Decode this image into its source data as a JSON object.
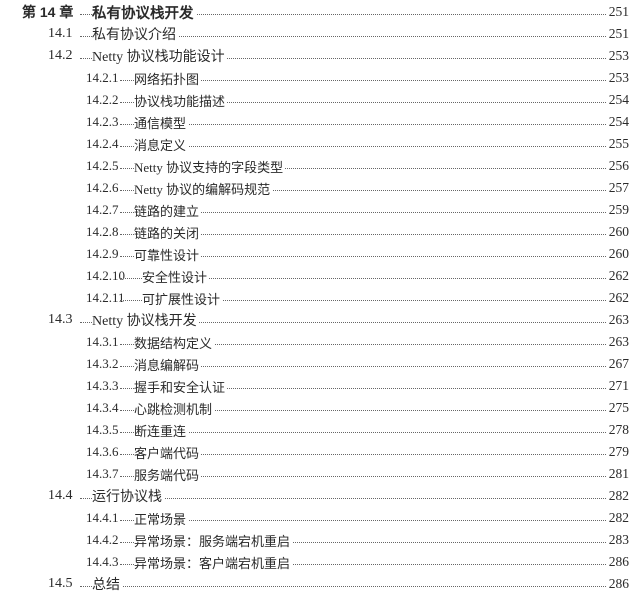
{
  "entries": [
    {
      "level": "chapter",
      "number": "第 14 章",
      "title": "私有协议栈开发",
      "page": "251"
    },
    {
      "level": "section",
      "number": "14.1",
      "title": "私有协议介绍",
      "page": "251"
    },
    {
      "level": "section",
      "number": "14.2",
      "title": "Netty 协议栈功能设计",
      "page": "253"
    },
    {
      "level": "sub",
      "number": "14.2.1",
      "title": "网络拓扑图",
      "page": "253"
    },
    {
      "level": "sub",
      "number": "14.2.2",
      "title": "协议栈功能描述",
      "page": "254"
    },
    {
      "level": "sub",
      "number": "14.2.3",
      "title": "通信模型",
      "page": "254"
    },
    {
      "level": "sub",
      "number": "14.2.4",
      "title": "消息定义",
      "page": "255"
    },
    {
      "level": "sub",
      "number": "14.2.5",
      "title": "Netty 协议支持的字段类型",
      "page": "256"
    },
    {
      "level": "sub",
      "number": "14.2.6",
      "title": "Netty 协议的编解码规范",
      "page": "257"
    },
    {
      "level": "sub",
      "number": "14.2.7",
      "title": "链路的建立",
      "page": "259"
    },
    {
      "level": "sub",
      "number": "14.2.8",
      "title": "链路的关闭",
      "page": "260"
    },
    {
      "level": "sub",
      "number": "14.2.9",
      "title": "可靠性设计",
      "page": "260"
    },
    {
      "level": "sub",
      "number": "14.2.10",
      "title": "安全性设计",
      "page": "262"
    },
    {
      "level": "sub",
      "number": "14.2.11",
      "title": "可扩展性设计",
      "page": "262"
    },
    {
      "level": "section",
      "number": "14.3",
      "title": "Netty 协议栈开发",
      "page": "263"
    },
    {
      "level": "sub",
      "number": "14.3.1",
      "title": "数据结构定义",
      "page": "263"
    },
    {
      "level": "sub",
      "number": "14.3.2",
      "title": "消息编解码",
      "page": "267"
    },
    {
      "level": "sub",
      "number": "14.3.3",
      "title": "握手和安全认证",
      "page": "271"
    },
    {
      "level": "sub",
      "number": "14.3.4",
      "title": "心跳检测机制",
      "page": "275"
    },
    {
      "level": "sub",
      "number": "14.3.5",
      "title": "断连重连",
      "page": "278"
    },
    {
      "level": "sub",
      "number": "14.3.6",
      "title": "客户端代码",
      "page": "279"
    },
    {
      "level": "sub",
      "number": "14.3.7",
      "title": "服务端代码",
      "page": "281"
    },
    {
      "level": "section",
      "number": "14.4",
      "title": "运行协议栈",
      "page": "282"
    },
    {
      "level": "sub",
      "number": "14.4.1",
      "title": "正常场景",
      "page": "282"
    },
    {
      "level": "sub",
      "number": "14.4.2",
      "title": "异常场景：服务端宕机重启",
      "page": "283"
    },
    {
      "level": "sub",
      "number": "14.4.3",
      "title": "异常场景：客户端宕机重启",
      "page": "286"
    },
    {
      "level": "section",
      "number": "14.5",
      "title": "总结",
      "page": "286"
    }
  ]
}
